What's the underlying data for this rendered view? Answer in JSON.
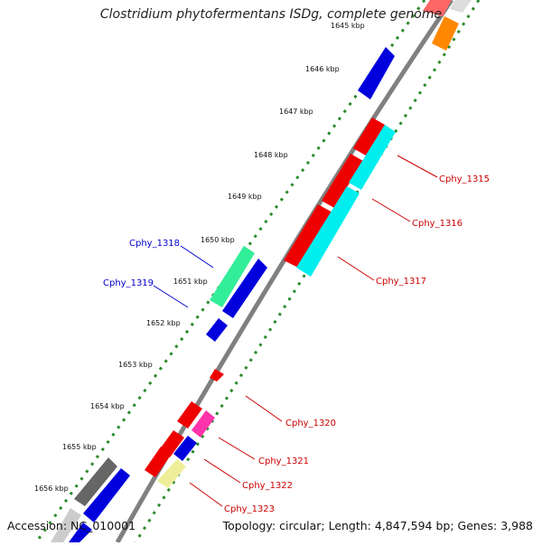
{
  "title": "Clostridium phytofermentans ISDg, complete genome",
  "footer": {
    "accession": "Accession: NC_010001",
    "summary": "Topology: circular; Length: 4,847,594 bp; Genes: 3,988"
  },
  "ticks": [
    {
      "id": "t1645",
      "label": "1645 kbp"
    },
    {
      "id": "t1646",
      "label": "1646 kbp"
    },
    {
      "id": "t1647",
      "label": "1647 kbp"
    },
    {
      "id": "t1648",
      "label": "1648 kbp"
    },
    {
      "id": "t1649",
      "label": "1649 kbp"
    },
    {
      "id": "t1650",
      "label": "1650 kbp"
    },
    {
      "id": "t1651",
      "label": "1651 kbp"
    },
    {
      "id": "t1652",
      "label": "1652 kbp"
    },
    {
      "id": "t1653",
      "label": "1653 kbp"
    },
    {
      "id": "t1654",
      "label": "1654 kbp"
    },
    {
      "id": "t1655",
      "label": "1655 kbp"
    },
    {
      "id": "t1656",
      "label": "1656 kbp"
    }
  ],
  "gene_labels": [
    {
      "id": "cphy1315",
      "label": "Cphy_1315",
      "color": "#cc0000"
    },
    {
      "id": "cphy1316",
      "label": "Cphy_1316",
      "color": "#cc0000"
    },
    {
      "id": "cphy1317",
      "label": "Cphy_1317",
      "color": "#cc0000"
    },
    {
      "id": "cphy1318",
      "label": "Cphy_1318",
      "color": "#0000cc"
    },
    {
      "id": "cphy1319",
      "label": "Cphy_1319",
      "color": "#0000cc"
    },
    {
      "id": "cphy1320",
      "label": "Cphy_1320",
      "color": "#cc0000"
    },
    {
      "id": "cphy1321",
      "label": "Cphy_1321",
      "color": "#cc0000"
    },
    {
      "id": "cphy1322",
      "label": "Cphy_1322",
      "color": "#cc0000"
    },
    {
      "id": "cphy1323",
      "label": "Cphy_1323",
      "color": "#cc0000"
    }
  ],
  "colors": {
    "backbone": "#808080",
    "tick_dots": "#2a8a2a",
    "gene_red": "#ee0000",
    "gene_blue": "#0000dd",
    "gene_cyan": "#00eeee",
    "gene_mint": "#33ee99",
    "gene_magenta": "#ff33aa",
    "gene_yellow": "#eeee99",
    "gene_orange": "#ff8800",
    "gene_gray": "#666666"
  }
}
